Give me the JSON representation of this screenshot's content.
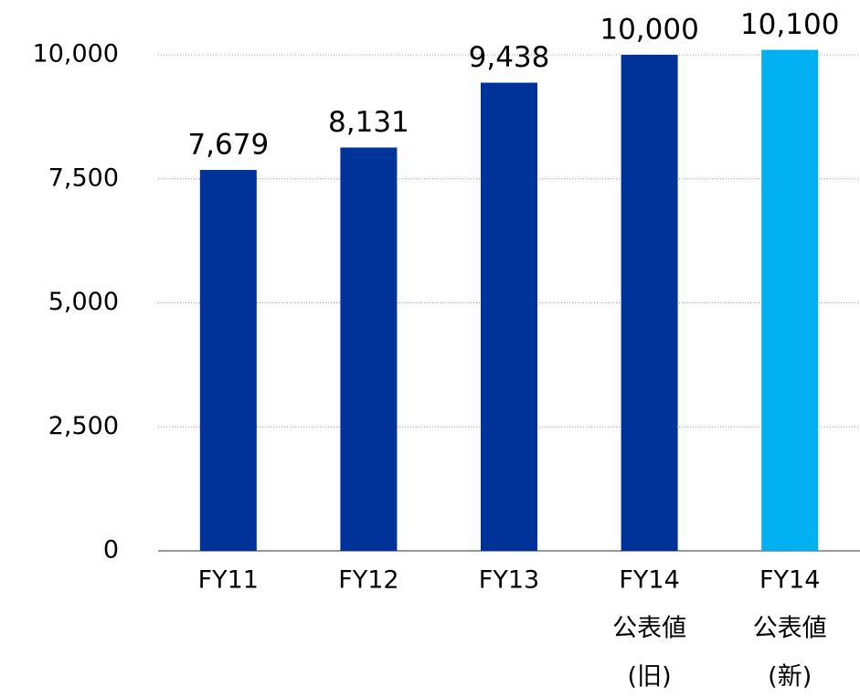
{
  "chart_data": {
    "type": "bar",
    "categories": [
      [
        "FY11"
      ],
      [
        "FY12"
      ],
      [
        "FY13"
      ],
      [
        "FY14",
        "公表値",
        "(旧)"
      ],
      [
        "FY14",
        "公表値",
        "(新)"
      ]
    ],
    "values": [
      7679,
      8131,
      9438,
      10000,
      10100
    ],
    "value_labels": [
      "7,679",
      "8,131",
      "9,438",
      "10,000",
      "10,100"
    ],
    "colors": [
      "#003399",
      "#003399",
      "#003399",
      "#003399",
      "#00b0f0"
    ],
    "ylim": [
      0,
      10000
    ],
    "yticks": [
      0,
      {
        "value": 2500,
        "label": "2,500"
      },
      {
        "value": 5000,
        "label": "5,000"
      },
      {
        "value": 7500,
        "label": "7,500"
      },
      {
        "value": 10000,
        "label": "10,000"
      }
    ],
    "grid": true
  }
}
